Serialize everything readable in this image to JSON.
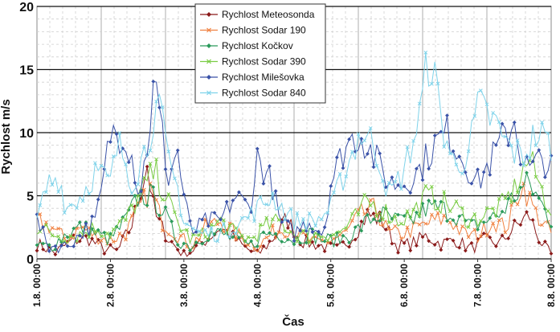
{
  "chart_data": {
    "type": "line",
    "title": "",
    "xlabel": "Čas",
    "ylabel": "Rychlost  m/s",
    "ylim": [
      0,
      20
    ],
    "yticks": [
      "0",
      "5",
      "10",
      "15",
      "20"
    ],
    "xlim": [
      0,
      7
    ],
    "xticks": [
      "1.8.  00:00",
      "2.8.  00:00",
      "3.8.  00:00",
      "4.8.  00:00",
      "5.8.  00:00",
      "6.8.  00:00",
      "7.8.  00:00",
      "8.8.  00:00"
    ],
    "grid": true,
    "legend_position": "top-center",
    "series": [
      {
        "name": "Rychlost Meteosonda",
        "color": "#8b1a1a",
        "marker": "diamond",
        "key": [
          [
            0,
            1.2
          ],
          [
            0.25,
            0.5
          ],
          [
            0.5,
            1.5
          ],
          [
            0.7,
            1.6
          ],
          [
            0.9,
            0.8
          ],
          [
            1.1,
            0.6
          ],
          [
            1.3,
            2.8
          ],
          [
            1.5,
            7.5
          ],
          [
            1.6,
            3.5
          ],
          [
            1.8,
            1.5
          ],
          [
            2.0,
            0.3
          ],
          [
            2.2,
            1.0
          ],
          [
            2.5,
            2.5
          ],
          [
            2.8,
            1.0
          ],
          [
            3.0,
            0.3
          ],
          [
            3.2,
            1.5
          ],
          [
            3.4,
            3.2
          ],
          [
            3.6,
            1.4
          ],
          [
            3.9,
            1.0
          ],
          [
            4.1,
            0.7
          ],
          [
            4.3,
            1.8
          ],
          [
            4.5,
            3.5
          ],
          [
            4.7,
            3.0
          ],
          [
            4.9,
            1.0
          ],
          [
            5.1,
            1.2
          ],
          [
            5.3,
            1.8
          ],
          [
            5.5,
            1.2
          ],
          [
            5.7,
            1.5
          ],
          [
            5.9,
            0.8
          ],
          [
            6.1,
            1.5
          ],
          [
            6.3,
            1.2
          ],
          [
            6.5,
            2.5
          ],
          [
            6.7,
            3.5
          ],
          [
            6.8,
            2.0
          ],
          [
            6.9,
            1.0
          ],
          [
            7.0,
            0.3
          ]
        ]
      },
      {
        "name": "Rychlost Sodar 190",
        "color": "#f08040",
        "marker": "x",
        "key": [
          [
            0,
            3.0
          ],
          [
            0.2,
            2.5
          ],
          [
            0.4,
            1.5
          ],
          [
            0.6,
            2.5
          ],
          [
            0.8,
            1.8
          ],
          [
            1.0,
            1.5
          ],
          [
            1.2,
            2.0
          ],
          [
            1.4,
            4.0
          ],
          [
            1.55,
            5.5
          ],
          [
            1.7,
            3.0
          ],
          [
            1.9,
            2.0
          ],
          [
            2.1,
            1.0
          ],
          [
            2.3,
            2.5
          ],
          [
            2.5,
            3.0
          ],
          [
            2.7,
            2.0
          ],
          [
            3.0,
            1.0
          ],
          [
            3.2,
            2.0
          ],
          [
            3.4,
            2.5
          ],
          [
            3.6,
            1.8
          ],
          [
            3.8,
            1.2
          ],
          [
            4.0,
            1.5
          ],
          [
            4.2,
            2.0
          ],
          [
            4.4,
            3.5
          ],
          [
            4.6,
            4.0
          ],
          [
            4.8,
            2.0
          ],
          [
            5.0,
            2.0
          ],
          [
            5.2,
            2.5
          ],
          [
            5.4,
            3.0
          ],
          [
            5.6,
            3.2
          ],
          [
            5.8,
            2.0
          ],
          [
            6.0,
            1.8
          ],
          [
            6.2,
            3.0
          ],
          [
            6.4,
            2.5
          ],
          [
            6.6,
            6.0
          ],
          [
            6.8,
            3.5
          ],
          [
            7.0,
            2.0
          ]
        ]
      },
      {
        "name": "Rychlost Kočkov",
        "color": "#2a9a5a",
        "marker": "diamond",
        "key": [
          [
            0,
            1.0
          ],
          [
            0.2,
            1.0
          ],
          [
            0.4,
            2.0
          ],
          [
            0.6,
            2.5
          ],
          [
            0.8,
            2.0
          ],
          [
            1.0,
            1.5
          ],
          [
            1.2,
            3.0
          ],
          [
            1.4,
            5.0
          ],
          [
            1.55,
            5.0
          ],
          [
            1.7,
            4.0
          ],
          [
            1.9,
            1.5
          ],
          [
            2.1,
            1.0
          ],
          [
            2.3,
            2.0
          ],
          [
            2.5,
            2.0
          ],
          [
            2.7,
            1.5
          ],
          [
            2.9,
            1.0
          ],
          [
            3.1,
            2.0
          ],
          [
            3.3,
            2.0
          ],
          [
            3.5,
            1.5
          ],
          [
            3.7,
            2.0
          ],
          [
            3.9,
            1.5
          ],
          [
            4.1,
            1.5
          ],
          [
            4.3,
            2.0
          ],
          [
            4.5,
            3.0
          ],
          [
            4.7,
            3.5
          ],
          [
            4.9,
            3.0
          ],
          [
            5.1,
            3.0
          ],
          [
            5.3,
            4.0
          ],
          [
            5.5,
            4.0
          ],
          [
            5.7,
            3.5
          ],
          [
            5.9,
            2.5
          ],
          [
            6.1,
            3.0
          ],
          [
            6.3,
            3.5
          ],
          [
            6.5,
            5.0
          ],
          [
            6.7,
            6.0
          ],
          [
            6.9,
            4.0
          ],
          [
            7.0,
            3.0
          ]
        ]
      },
      {
        "name": "Rychlost Sodar 390",
        "color": "#7acc44",
        "marker": "x",
        "key": [
          [
            0,
            2.5
          ],
          [
            0.2,
            2.0
          ],
          [
            0.4,
            1.8
          ],
          [
            0.6,
            2.0
          ],
          [
            0.8,
            2.5
          ],
          [
            1.0,
            2.0
          ],
          [
            1.2,
            3.0
          ],
          [
            1.4,
            5.0
          ],
          [
            1.6,
            7.0
          ],
          [
            1.75,
            5.0
          ],
          [
            1.9,
            3.0
          ],
          [
            2.1,
            1.5
          ],
          [
            2.3,
            2.0
          ],
          [
            2.5,
            3.0
          ],
          [
            2.7,
            2.0
          ],
          [
            2.9,
            1.5
          ],
          [
            3.1,
            2.5
          ],
          [
            3.3,
            3.0
          ],
          [
            3.5,
            2.0
          ],
          [
            3.7,
            1.8
          ],
          [
            3.9,
            2.0
          ],
          [
            4.1,
            2.0
          ],
          [
            4.3,
            3.0
          ],
          [
            4.5,
            4.5
          ],
          [
            4.7,
            4.0
          ],
          [
            4.9,
            3.0
          ],
          [
            5.1,
            3.5
          ],
          [
            5.3,
            5.0
          ],
          [
            5.5,
            4.5
          ],
          [
            5.7,
            4.0
          ],
          [
            5.9,
            3.0
          ],
          [
            6.1,
            3.5
          ],
          [
            6.3,
            4.0
          ],
          [
            6.5,
            5.5
          ],
          [
            6.7,
            8.0
          ],
          [
            6.9,
            5.0
          ],
          [
            7.0,
            4.0
          ]
        ]
      },
      {
        "name": "Rychlost Milešovka",
        "color": "#3a52a8",
        "marker": "diamond",
        "key": [
          [
            0,
            3.0
          ],
          [
            0.15,
            1.0
          ],
          [
            0.4,
            1.0
          ],
          [
            0.6,
            2.0
          ],
          [
            0.8,
            3.0
          ],
          [
            0.9,
            6.0
          ],
          [
            1.0,
            10.0
          ],
          [
            1.2,
            10.0
          ],
          [
            1.3,
            8.0
          ],
          [
            1.4,
            5.0
          ],
          [
            1.5,
            9.0
          ],
          [
            1.6,
            14.0
          ],
          [
            1.7,
            10.0
          ],
          [
            1.8,
            6.0
          ],
          [
            1.9,
            9.0
          ],
          [
            2.0,
            5.0
          ],
          [
            2.1,
            2.0
          ],
          [
            2.3,
            3.0
          ],
          [
            2.5,
            3.0
          ],
          [
            2.7,
            5.0
          ],
          [
            2.9,
            4.0
          ],
          [
            3.0,
            8.0
          ],
          [
            3.1,
            7.0
          ],
          [
            3.2,
            6.0
          ],
          [
            3.3,
            3.0
          ],
          [
            3.5,
            2.0
          ],
          [
            3.7,
            3.0
          ],
          [
            3.9,
            2.0
          ],
          [
            4.0,
            6.0
          ],
          [
            4.2,
            9.0
          ],
          [
            4.4,
            10.0
          ],
          [
            4.6,
            8.0
          ],
          [
            4.8,
            6.0
          ],
          [
            5.0,
            6.0
          ],
          [
            5.2,
            7.0
          ],
          [
            5.4,
            9.0
          ],
          [
            5.6,
            10.0
          ],
          [
            5.8,
            8.0
          ],
          [
            6.0,
            6.0
          ],
          [
            6.2,
            8.0
          ],
          [
            6.4,
            10.0
          ],
          [
            6.5,
            11.0
          ],
          [
            6.6,
            8.0
          ],
          [
            6.7,
            7.0
          ],
          [
            6.9,
            8.0
          ],
          [
            7.0,
            7.0
          ]
        ]
      },
      {
        "name": "Rychlost Sodar 840",
        "color": "#7fd3ea",
        "marker": "x",
        "key": [
          [
            0,
            3.0
          ],
          [
            0.15,
            6.0
          ],
          [
            0.3,
            6.5
          ],
          [
            0.4,
            4.0
          ],
          [
            0.6,
            5.0
          ],
          [
            0.8,
            7.0
          ],
          [
            1.0,
            6.0
          ],
          [
            1.1,
            9.0
          ],
          [
            1.2,
            8.0
          ],
          [
            1.3,
            6.0
          ],
          [
            1.5,
            9.0
          ],
          [
            1.6,
            12.0
          ],
          [
            1.7,
            11.0
          ],
          [
            1.8,
            7.0
          ],
          [
            1.9,
            6.0
          ],
          [
            2.0,
            3.0
          ],
          [
            2.2,
            2.0
          ],
          [
            2.5,
            2.0
          ],
          [
            2.8,
            3.0
          ],
          [
            3.0,
            4.0
          ],
          [
            3.2,
            5.0
          ],
          [
            3.5,
            3.0
          ],
          [
            3.8,
            3.0
          ],
          [
            4.0,
            4.0
          ],
          [
            4.2,
            7.0
          ],
          [
            4.4,
            10.0
          ],
          [
            4.6,
            9.0
          ],
          [
            4.8,
            5.0
          ],
          [
            5.0,
            7.0
          ],
          [
            5.2,
            11.0
          ],
          [
            5.35,
            16.5
          ],
          [
            5.5,
            11.0
          ],
          [
            5.7,
            7.0
          ],
          [
            5.9,
            9.0
          ],
          [
            6.0,
            12.0
          ],
          [
            6.2,
            11.0
          ],
          [
            6.4,
            9.0
          ],
          [
            6.6,
            8.0
          ],
          [
            6.8,
            10.0
          ],
          [
            7.0,
            9.0
          ]
        ]
      }
    ]
  }
}
